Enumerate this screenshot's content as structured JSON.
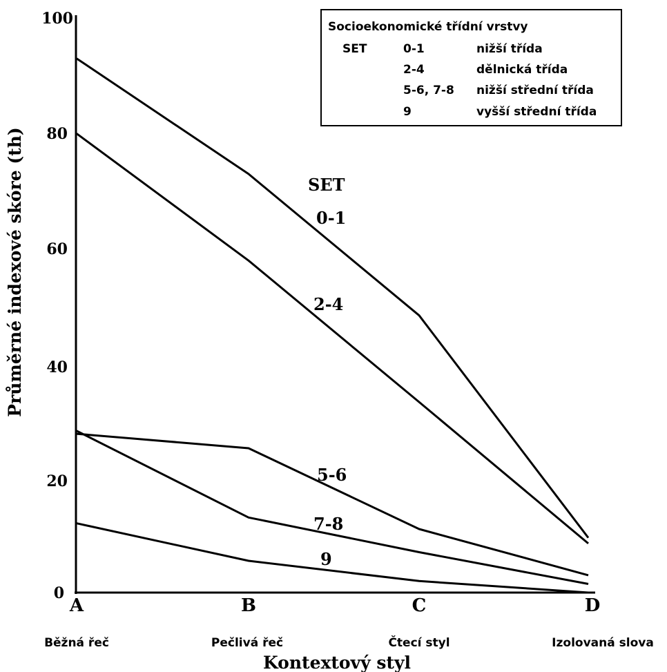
{
  "chart_data": {
    "type": "line",
    "title": "",
    "xlabel": "Kontextový styl",
    "ylabel": "Průměrné indexové skóre (th)",
    "ylim": [
      0,
      100
    ],
    "y_ticks": [
      "0",
      "20",
      "40",
      "60",
      "80",
      "100"
    ],
    "categories": [
      "A",
      "B",
      "C",
      "D"
    ],
    "category_names": [
      "Běžná řeč",
      "Pečlivá řeč",
      "Čtecí styl",
      "Izolovaná slova"
    ],
    "grid": false,
    "series_header": "SET",
    "series": [
      {
        "name": "0-1",
        "values": [
          92.5,
          72.5,
          48,
          9.5
        ]
      },
      {
        "name": "2-4",
        "values": [
          79.5,
          57.5,
          33,
          8.5
        ]
      },
      {
        "name": "5-6",
        "values": [
          27.5,
          25,
          11,
          3
        ]
      },
      {
        "name": "7-8",
        "values": [
          28,
          13,
          7,
          1.5
        ]
      },
      {
        "name": "9",
        "values": [
          12,
          5.5,
          2,
          0
        ]
      }
    ],
    "legend": {
      "title": "Socioekonomické třídní vrstvy",
      "placement": "top-right",
      "column_label": "SET",
      "rows": [
        {
          "code": "0-1",
          "label": "nižší třída"
        },
        {
          "code": "2-4",
          "label": "dělnická třída"
        },
        {
          "code": "5-6, 7-8",
          "label": "nižší střední třída"
        },
        {
          "code": "9",
          "label": "vyšší střední třída"
        }
      ]
    }
  }
}
